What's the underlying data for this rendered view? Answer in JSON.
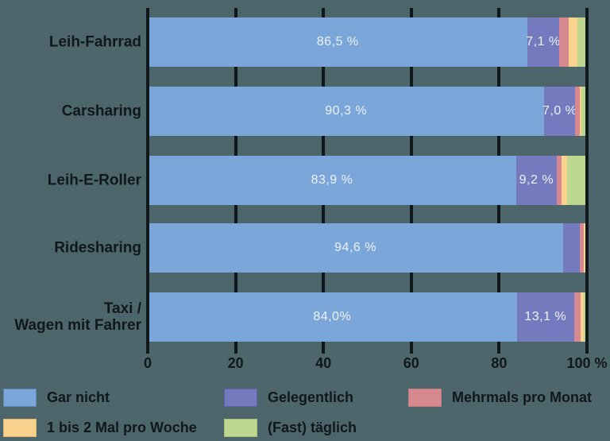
{
  "colors": {
    "background": "#4d666b",
    "axis": "#10181b",
    "category_text": "#10181b",
    "bar_value_text": "#edf2f7"
  },
  "chart_data": {
    "type": "bar",
    "orientation": "horizontal",
    "stacked": true,
    "unit": "%",
    "x_axis": {
      "min": 0,
      "max": 100,
      "ticks": [
        0,
        20,
        40,
        60,
        80,
        100
      ],
      "tick_labels": [
        "0",
        "20",
        "40",
        "60",
        "80",
        "100 %"
      ],
      "grid": true
    },
    "categories": [
      "Leih-Fahrrad",
      "Carsharing",
      "Leih-E-Roller",
      "Ridesharing",
      "Taxi /\nWagen mit Fahrer"
    ],
    "series": [
      {
        "name": "Gar nicht",
        "color": "#7aa6d9",
        "values": [
          86.5,
          90.3,
          83.9,
          94.6,
          84.0
        ],
        "value_labels": [
          "86,5 %",
          "90,3 %",
          "83,9 %",
          "94,6 %",
          "84,0%"
        ]
      },
      {
        "name": "Gelegentlich",
        "color": "#7579bd",
        "values": [
          7.1,
          7.0,
          9.2,
          3.7,
          13.1
        ],
        "value_labels": [
          "7,1 %",
          "7,0 %",
          "9,2 %",
          "",
          "13,1 %"
        ]
      },
      {
        "name": "Mehrmals pro Monat",
        "color": "#d68a90",
        "values": [
          2.3,
          1.0,
          1.2,
          0.9,
          1.5
        ],
        "value_labels": [
          "",
          "",
          "",
          "",
          ""
        ]
      },
      {
        "name": "1 bis 2 Mal pro Woche",
        "color": "#f9d28e",
        "values": [
          2.0,
          0.4,
          1.2,
          0.4,
          0.6
        ],
        "value_labels": [
          "",
          "",
          "",
          "",
          ""
        ]
      },
      {
        "name": "(Fast) täglich",
        "color": "#bdd78f",
        "values": [
          2.1,
          1.3,
          4.5,
          0.4,
          0.8
        ],
        "value_labels": [
          "",
          "",
          "",
          "",
          ""
        ]
      }
    ]
  },
  "legend": {
    "items": [
      {
        "label": "Gar nicht",
        "color": "#7aa6d9",
        "border": "#5e86b5",
        "row": 0,
        "col": 0
      },
      {
        "label": "Gelegentlich",
        "color": "#7579bd",
        "border": "#5d61a5",
        "row": 0,
        "col": 1
      },
      {
        "label": "Mehrmals pro Monat",
        "color": "#d68a90",
        "border": "#c17a84",
        "row": 0,
        "col": 2
      },
      {
        "label": "1 bis 2 Mal pro Woche",
        "color": "#f9d28e",
        "border": "#dfb878",
        "row": 1,
        "col": 0
      },
      {
        "label": "(Fast) täglich",
        "color": "#bdd78f",
        "border": "#a6c077",
        "row": 1,
        "col": 1
      }
    ]
  }
}
